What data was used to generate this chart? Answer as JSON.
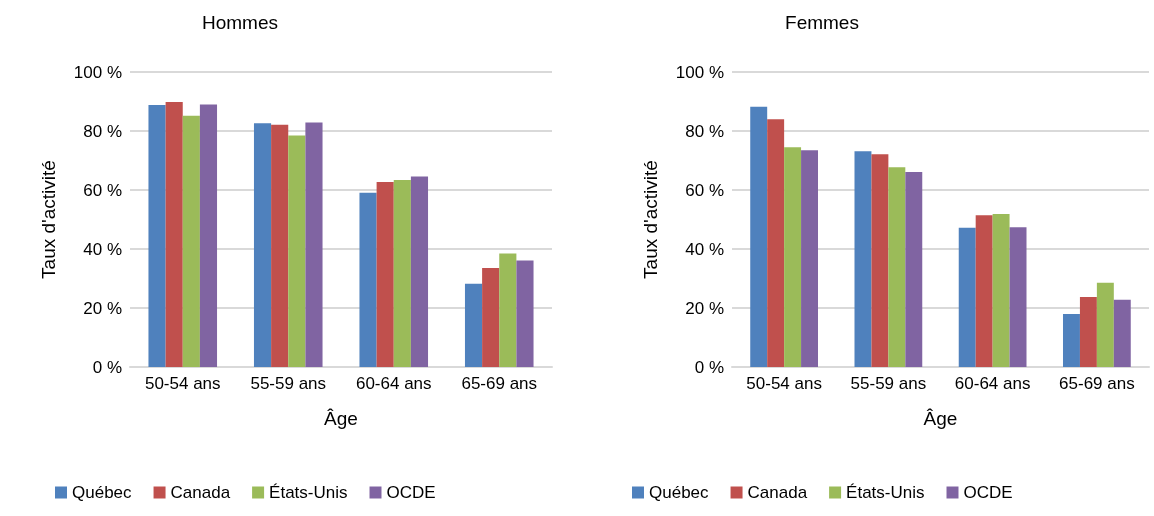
{
  "chart_data": [
    {
      "type": "bar",
      "title": "Hommes",
      "xlabel": "Âge",
      "ylabel": "Taux d'activité",
      "categories": [
        "50-54 ans",
        "55-59 ans",
        "60-64 ans",
        "65-69 ans"
      ],
      "series": [
        {
          "name": "Québec",
          "color": "#4f81bd",
          "values": [
            88.8,
            82.6,
            59.1,
            28.2
          ]
        },
        {
          "name": "Canada",
          "color": "#c0504d",
          "values": [
            89.8,
            82.1,
            62.7,
            33.6
          ]
        },
        {
          "name": "États-Unis",
          "color": "#9bbb59",
          "values": [
            85.2,
            78.5,
            63.4,
            38.5
          ]
        },
        {
          "name": "OCDE",
          "color": "#8064a2",
          "values": [
            89.0,
            82.9,
            64.6,
            36.1
          ]
        }
      ],
      "ylim": [
        0,
        100
      ],
      "yticks": [
        {
          "value": 0,
          "label": "0 %"
        },
        {
          "value": 20,
          "label": "20 %"
        },
        {
          "value": 40,
          "label": "40 %"
        },
        {
          "value": 60,
          "label": "60 %"
        },
        {
          "value": 80,
          "label": "80 %"
        },
        {
          "value": 100,
          "label": "100 %"
        }
      ],
      "grid": "y",
      "legend": "bottom"
    },
    {
      "type": "bar",
      "title": "Femmes",
      "xlabel": "Âge",
      "ylabel": "Taux d'activité",
      "categories": [
        "50-54 ans",
        "55-59 ans",
        "60-64 ans",
        "65-69 ans"
      ],
      "series": [
        {
          "name": "Québec",
          "color": "#4f81bd",
          "values": [
            88.2,
            73.1,
            47.2,
            18.0
          ]
        },
        {
          "name": "Canada",
          "color": "#c0504d",
          "values": [
            84.0,
            72.1,
            51.4,
            23.7
          ]
        },
        {
          "name": "États-Unis",
          "color": "#9bbb59",
          "values": [
            74.5,
            67.7,
            51.9,
            28.6
          ]
        },
        {
          "name": "OCDE",
          "color": "#8064a2",
          "values": [
            73.5,
            66.1,
            47.4,
            22.8
          ]
        }
      ],
      "ylim": [
        0,
        100
      ],
      "yticks": [
        {
          "value": 0,
          "label": "0 %"
        },
        {
          "value": 20,
          "label": "20 %"
        },
        {
          "value": 40,
          "label": "40 %"
        },
        {
          "value": 60,
          "label": "60 %"
        },
        {
          "value": 80,
          "label": "80 %"
        },
        {
          "value": 100,
          "label": "100 %"
        }
      ],
      "grid": "y",
      "legend": "bottom"
    }
  ]
}
